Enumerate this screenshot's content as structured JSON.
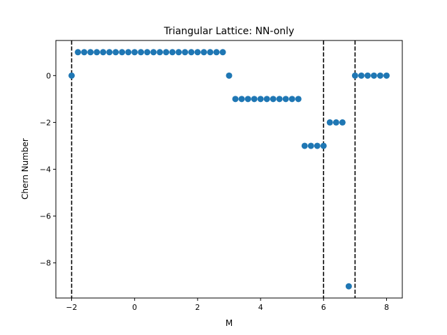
{
  "chart_data": {
    "type": "scatter",
    "title": "Triangular Lattice: NN-only",
    "xlabel": "M",
    "ylabel": "Chern Number",
    "xlim": [
      -2.5,
      8.5
    ],
    "ylim": [
      -9.5,
      1.5
    ],
    "xticks": [
      -2,
      0,
      2,
      4,
      6,
      8
    ],
    "yticks": [
      -8,
      -6,
      -4,
      -2,
      0
    ],
    "xtick_labels": [
      "−2",
      "0",
      "2",
      "4",
      "6",
      "8"
    ],
    "ytick_labels": [
      "−8",
      "−6",
      "−4",
      "−2",
      "0"
    ],
    "grid": false,
    "marker_color": "#1f77b4",
    "vline_color": "#000000",
    "vlines": [
      -2,
      6,
      7
    ],
    "series": [
      {
        "x": [
          -2.0,
          -1.8,
          -1.6,
          -1.4,
          -1.2,
          -1.0,
          -0.8,
          -0.6,
          -0.4,
          -0.2,
          0.0,
          0.2,
          0.4,
          0.6,
          0.8,
          1.0,
          1.2,
          1.4,
          1.6,
          1.8,
          2.0,
          2.2,
          2.4,
          2.6,
          2.8,
          3.0,
          3.2,
          3.4,
          3.6,
          3.8,
          4.0,
          4.2,
          4.4,
          4.6,
          4.8,
          5.0,
          5.2,
          5.4,
          5.6,
          5.8,
          6.0,
          6.2,
          6.4,
          6.6,
          6.8,
          7.0,
          7.2,
          7.4,
          7.6,
          7.8,
          8.0
        ],
        "y": [
          0,
          1,
          1,
          1,
          1,
          1,
          1,
          1,
          1,
          1,
          1,
          1,
          1,
          1,
          1,
          1,
          1,
          1,
          1,
          1,
          1,
          1,
          1,
          1,
          1,
          0,
          -1,
          -1,
          -1,
          -1,
          -1,
          -1,
          -1,
          -1,
          -1,
          -1,
          -1,
          -3,
          -3,
          -3,
          -3,
          -2,
          -2,
          -2,
          -9,
          0,
          0,
          0,
          0,
          0,
          0
        ]
      }
    ]
  }
}
